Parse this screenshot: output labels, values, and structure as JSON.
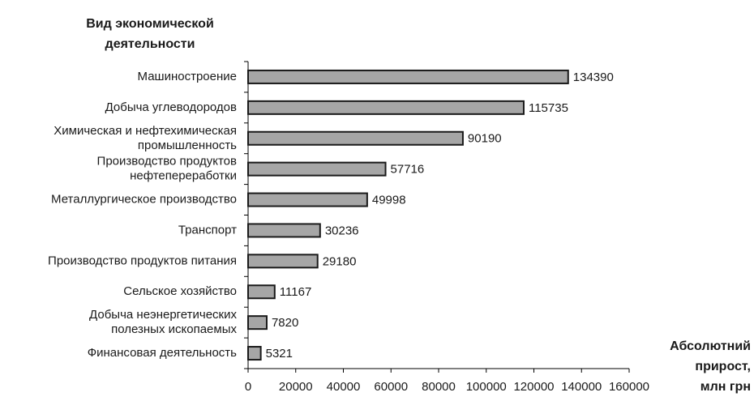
{
  "chart_data": {
    "type": "bar",
    "orientation": "horizontal",
    "y_axis_title": "Вид экономической\nдеятельности",
    "x_axis_title": "Абсолютний\nприрост,\nмлн грн",
    "categories": [
      "Машиностроение",
      "Добыча углеводородов",
      "Химическая и нефтехимическая\nпромышленность",
      "Производство продуктов\nнефтепереработки",
      "Металлургическое производство",
      "Транспорт",
      "Производство продуктов питания",
      "Сельское хозяйство",
      "Добыча неэнергетических\nполезных ископаемых",
      "Финансовая деятельность"
    ],
    "values": [
      134390,
      115735,
      90190,
      57716,
      49998,
      30236,
      29180,
      11167,
      7820,
      5321
    ],
    "color": "#a6a6a6",
    "xlim": [
      0,
      160000
    ],
    "xticks": [
      0,
      20000,
      40000,
      60000,
      80000,
      100000,
      120000,
      140000,
      160000
    ],
    "grid": false
  }
}
